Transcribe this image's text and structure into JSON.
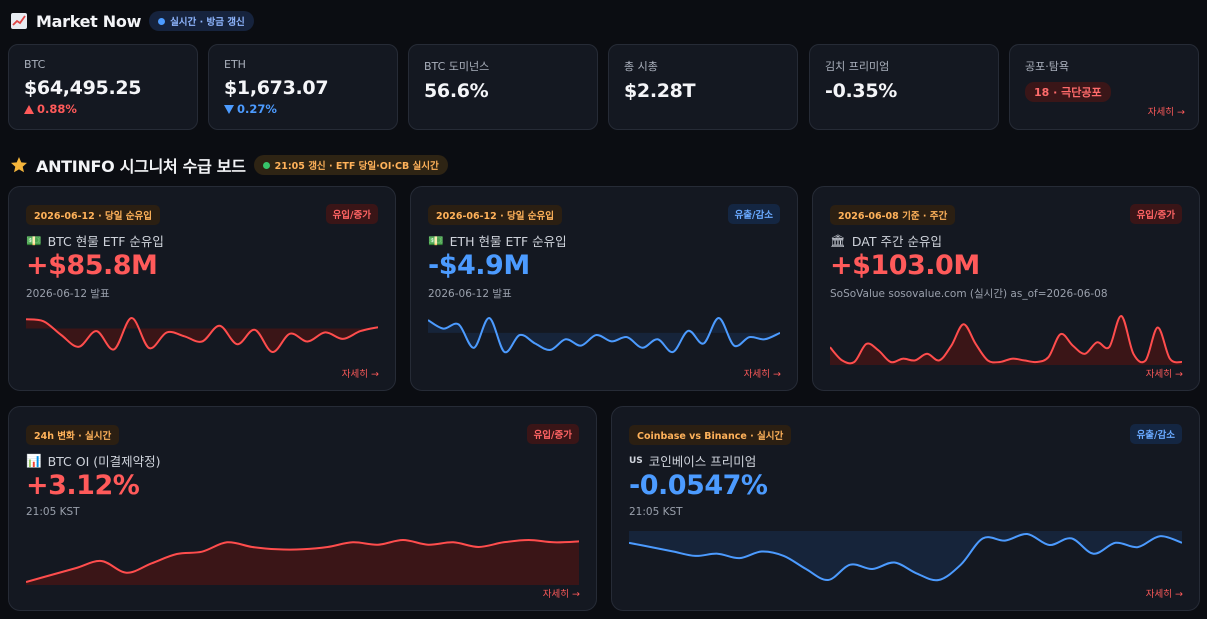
{
  "market": {
    "title": "Market Now",
    "badge": "실시간 · 방금 갱신",
    "tiles": [
      {
        "label": "BTC",
        "value": "$64,495.25",
        "change": "0.88%",
        "direction": "up"
      },
      {
        "label": "ETH",
        "value": "$1,673.07",
        "change": "0.27%",
        "direction": "down"
      },
      {
        "label": "BTC 도미넌스",
        "value": "56.6%"
      },
      {
        "label": "총 시총",
        "value": "$2.28T"
      },
      {
        "label": "김치 프리미엄",
        "value": "-0.35%"
      },
      {
        "label": "공포·탐욕",
        "badge": "18 · 극단공포",
        "more": "자세히 →"
      }
    ]
  },
  "board": {
    "title": "ANTINFO 시그니처 수급 보드",
    "badge": "21:05 갱신 · ETF 당일·OI·CB 실시간",
    "cards": [
      {
        "chip": "2026-06-12 · 당일 순유입",
        "tag": "유입/증가",
        "tag_color": "red",
        "icon": "💵",
        "title": "BTC 현물 ETF 순유입",
        "value": "+$85.8M",
        "sub": "2026-06-12 발표",
        "more": "자세히 →",
        "series": [
          0.7,
          0.55,
          -0.5,
          -1.4,
          -0.2,
          -1.6,
          0.8,
          -1.5,
          -0.3,
          -0.6,
          -1.0,
          0.2,
          -1.2,
          -0.1,
          -1.8,
          -0.4,
          -1.0,
          -0.3,
          -0.8,
          -0.2,
          0.1
        ],
        "color": "#ff4d4d",
        "fill": "#3a1517"
      },
      {
        "chip": "2026-06-12 · 당일 순유입",
        "tag": "유출/감소",
        "tag_color": "blue",
        "icon": "💵",
        "title": "ETH 현물 ETF 순유입",
        "value": "-$4.9M",
        "sub": "2026-06-12 발표",
        "more": "자세히 →",
        "series": [
          0.6,
          0.2,
          0.4,
          -0.7,
          0.7,
          -0.9,
          -0.1,
          -0.5,
          -0.8,
          -0.3,
          -0.6,
          -0.1,
          -0.4,
          -0.2,
          -0.7,
          -0.3,
          -0.9,
          0.1,
          -0.5,
          0.7,
          -0.6,
          -0.2,
          -0.3,
          0
        ],
        "color": "#4c9bff",
        "fill": "#16243a"
      },
      {
        "chip": "2026-06-08 기준 · 주간",
        "tag": "유입/증가",
        "tag_color": "red",
        "icon": "🏛",
        "title": "DAT 주간 순유입",
        "value": "+$103.0M",
        "sub": "SoSoValue sosovalue.com (실시간) as_of=2026-06-08",
        "more": "자세히 →",
        "series": [
          0.5,
          0.1,
          0.05,
          0.6,
          0.4,
          0.05,
          0.15,
          0.1,
          0.3,
          0.1,
          0.55,
          1.2,
          0.6,
          0.1,
          0.05,
          0.15,
          0.1,
          0.05,
          0.2,
          0.9,
          0.55,
          0.3,
          0.65,
          0.5,
          1.45,
          0.3,
          0.1,
          1.1,
          0.15,
          0.05
        ],
        "color": "#ff4d4d",
        "fill": "#3a1517"
      },
      {
        "chip": "24h 변화 · 실시간",
        "tag": "유입/증가",
        "tag_color": "red",
        "icon": "📊",
        "title": "BTC OI (미결제약정)",
        "value": "+3.12%",
        "sub": "21:05 KST",
        "more": "자세히 →",
        "series": [
          0.1,
          0.25,
          0.4,
          0.55,
          0.3,
          0.5,
          0.7,
          0.75,
          0.95,
          0.85,
          0.8,
          0.8,
          0.85,
          0.95,
          0.9,
          1.0,
          0.9,
          0.95,
          0.85,
          0.95,
          1.0,
          0.95,
          0.97
        ],
        "color": "#ff4d4d",
        "fill": "#3a1517"
      },
      {
        "chip": "Coinbase vs Binance · 실시간",
        "tag": "유출/감소",
        "tag_color": "blue",
        "icon": "US",
        "title": "코인베이스 프리미엄",
        "value": "-0.0547%",
        "sub": "21:05 KST",
        "more": "자세히 →",
        "series": [
          0.8,
          0.7,
          0.6,
          0.5,
          0.55,
          0.45,
          0.6,
          0.5,
          0.2,
          -0.05,
          0.3,
          0.2,
          0.35,
          0.1,
          -0.05,
          0.3,
          0.9,
          0.85,
          1.0,
          0.75,
          0.9,
          0.55,
          0.8,
          0.7,
          0.95,
          0.8
        ],
        "color": "#4c9bff",
        "fill": "#16243a"
      }
    ]
  },
  "colors": {
    "up": "#ff5a5a",
    "down": "#4c9bff",
    "accent": "#ffb25a"
  }
}
